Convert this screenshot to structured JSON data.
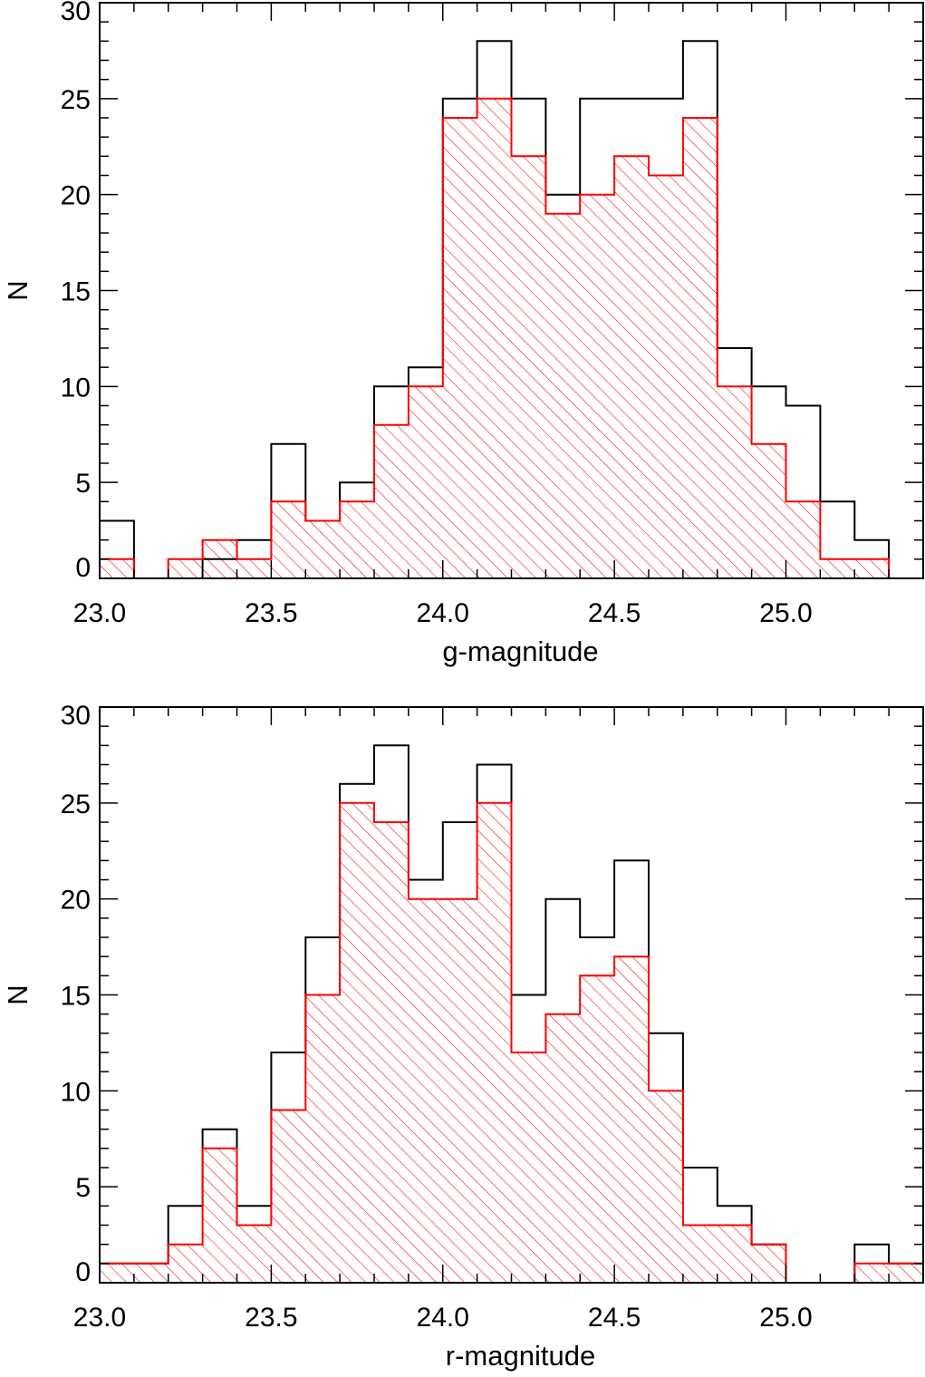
{
  "chart_data": [
    {
      "type": "histogram",
      "xlabel": "g-magnitude",
      "ylabel": "N",
      "xlim": [
        23.0,
        25.4
      ],
      "ylim": [
        0,
        30
      ],
      "xticks": [
        "23.0",
        "23.5",
        "24.0",
        "24.5",
        "25.0"
      ],
      "yticks": [
        "0",
        "5",
        "10",
        "15",
        "20",
        "25",
        "30"
      ],
      "bin_edges": [
        23.0,
        23.1,
        23.2,
        23.3,
        23.4,
        23.5,
        23.6,
        23.7,
        23.8,
        23.9,
        24.0,
        24.1,
        24.2,
        24.3,
        24.4,
        24.5,
        24.6,
        24.7,
        24.8,
        24.9,
        25.0,
        25.1,
        25.2,
        25.3,
        25.4
      ],
      "series": [
        {
          "color": "#000000",
          "hatched": false,
          "values": [
            3,
            0,
            0,
            1,
            2,
            7,
            3,
            5,
            10,
            11,
            25,
            28,
            25,
            20,
            25,
            25,
            25,
            28,
            12,
            10,
            9,
            4,
            2,
            0
          ]
        },
        {
          "color": "#ff0000",
          "hatched": true,
          "values": [
            1,
            0,
            1,
            2,
            1,
            4,
            3,
            4,
            8,
            10,
            24,
            25,
            22,
            19,
            20,
            22,
            21,
            24,
            10,
            7,
            4,
            1,
            1,
            0
          ]
        }
      ]
    },
    {
      "type": "histogram",
      "xlabel": "r-magnitude",
      "ylabel": "N",
      "xlim": [
        23.0,
        25.4
      ],
      "ylim": [
        0,
        30
      ],
      "xticks": [
        "23.0",
        "23.5",
        "24.0",
        "24.5",
        "25.0"
      ],
      "yticks": [
        "0",
        "5",
        "10",
        "15",
        "20",
        "25",
        "30"
      ],
      "bin_edges": [
        23.0,
        23.1,
        23.2,
        23.3,
        23.4,
        23.5,
        23.6,
        23.7,
        23.8,
        23.9,
        24.0,
        24.1,
        24.2,
        24.3,
        24.4,
        24.5,
        24.6,
        24.7,
        24.8,
        24.9,
        25.0,
        25.1,
        25.2,
        25.3,
        25.4
      ],
      "series": [
        {
          "color": "#000000",
          "hatched": false,
          "values": [
            1,
            1,
            4,
            8,
            4,
            12,
            18,
            26,
            28,
            21,
            24,
            27,
            15,
            20,
            18,
            22,
            13,
            6,
            4,
            2,
            0,
            0,
            2,
            1
          ]
        },
        {
          "color": "#ff0000",
          "hatched": true,
          "values": [
            1,
            1,
            2,
            7,
            3,
            9,
            15,
            25,
            24,
            20,
            20,
            25,
            12,
            14,
            16,
            17,
            10,
            3,
            3,
            2,
            0,
            0,
            1,
            1
          ]
        }
      ]
    }
  ]
}
